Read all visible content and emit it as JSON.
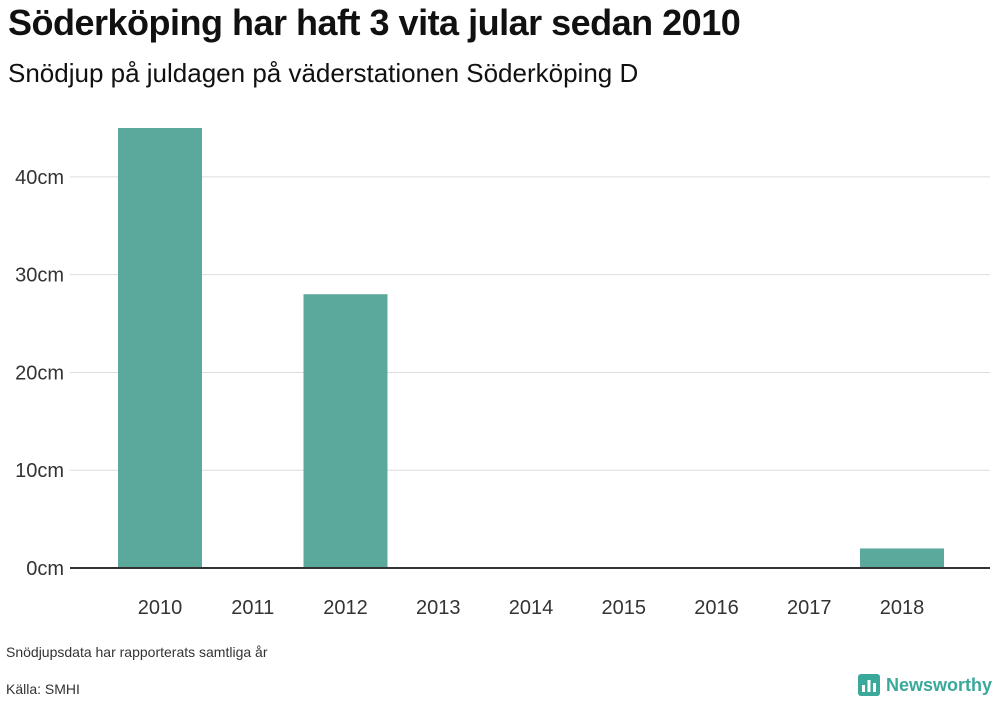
{
  "title": "Söderköping har haft 3 vita jular sedan 2010",
  "subtitle": "Snödjup på juldagen på väderstationen Söderköping D",
  "footnote": "Snödjupsdata har rapporterats samtliga år",
  "source": "Källa: SMHI",
  "brand": "Newsworthy",
  "colors": {
    "bar": "#5ba89d",
    "brand": "#3aa89a",
    "grid": "#dddddd",
    "axis": "#333333"
  },
  "chart_data": {
    "type": "bar",
    "categories": [
      "2010",
      "2011",
      "2012",
      "2013",
      "2014",
      "2015",
      "2016",
      "2017",
      "2018"
    ],
    "values": [
      45,
      0,
      28,
      0,
      0,
      0,
      0,
      0,
      2
    ],
    "ylim": [
      0,
      45
    ],
    "yticks": [
      0,
      10,
      20,
      30,
      40
    ],
    "ytick_labels": [
      "0cm",
      "10cm",
      "20cm",
      "30cm",
      "40cm"
    ],
    "grid": true,
    "legend": "none"
  }
}
